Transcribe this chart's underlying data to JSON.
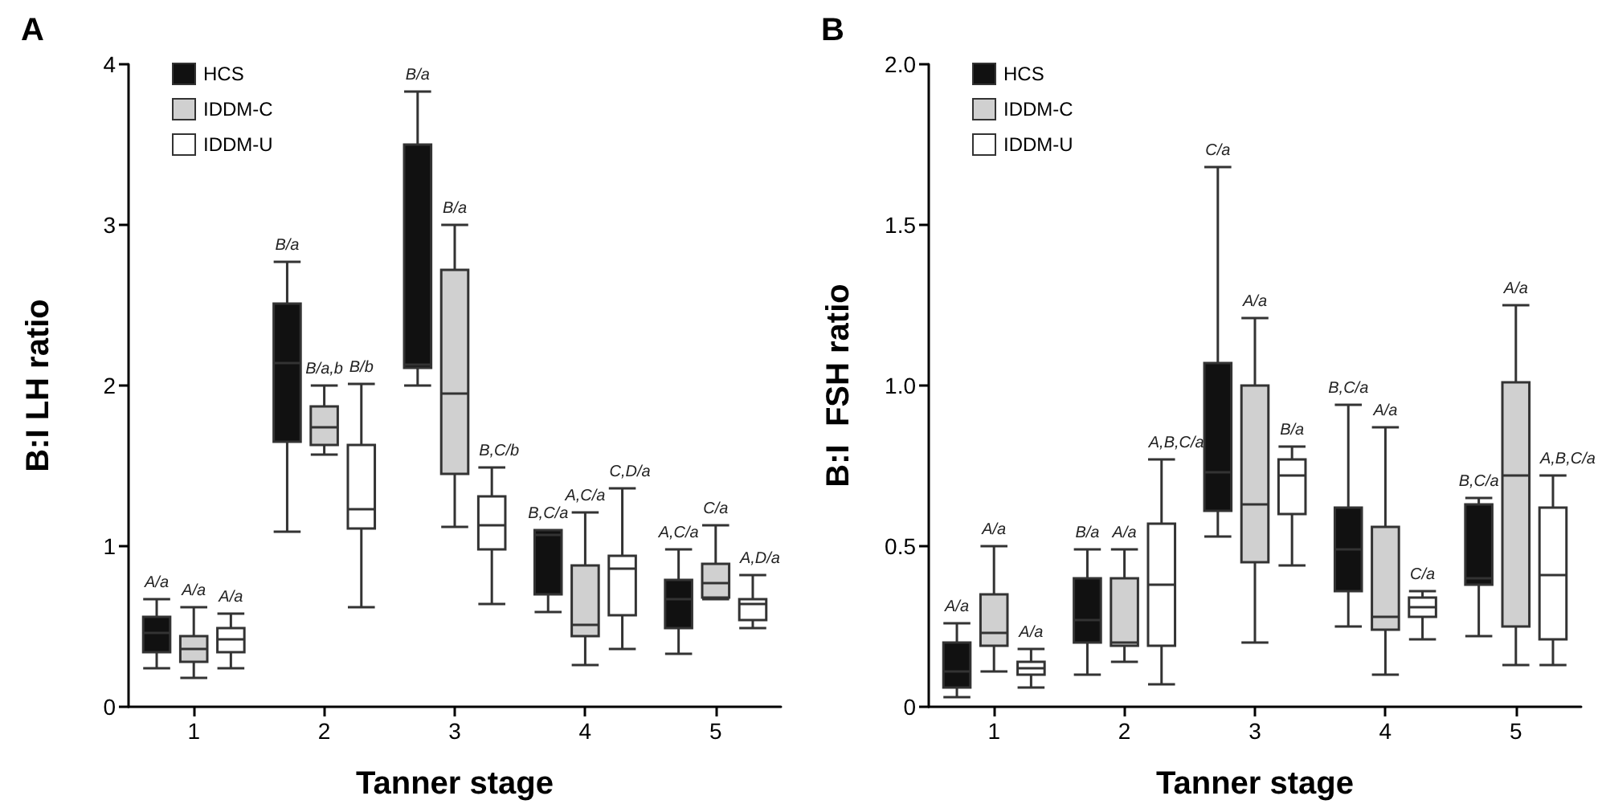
{
  "chart_data": [
    {
      "type": "box",
      "title": "A",
      "xlabel": "Tanner stage",
      "ylabel": "B:I LH ratio",
      "categories": [
        "1",
        "2",
        "3",
        "4",
        "5"
      ],
      "ylim": [
        0,
        4
      ],
      "yticks": [
        0,
        1,
        2,
        3,
        4
      ],
      "grid": false,
      "legend": "top left",
      "series": [
        {
          "name": "HCS",
          "color": "#111111",
          "boxes": [
            {
              "low": 0.24,
              "q1": 0.34,
              "median": 0.46,
              "q3": 0.56,
              "high": 0.67
            },
            {
              "low": 1.09,
              "q1": 1.65,
              "median": 2.14,
              "q3": 2.51,
              "high": 2.77
            },
            {
              "low": 2.0,
              "q1": 2.11,
              "median": 2.13,
              "q3": 3.5,
              "high": 3.83
            },
            {
              "low": 0.59,
              "q1": 0.7,
              "median": 1.07,
              "q3": 1.1,
              "high": 1.1
            },
            {
              "low": 0.33,
              "q1": 0.49,
              "median": 0.67,
              "q3": 0.79,
              "high": 0.98
            }
          ]
        },
        {
          "name": "IDDM-C",
          "color": "#d0d0d0",
          "boxes": [
            {
              "low": 0.18,
              "q1": 0.28,
              "median": 0.36,
              "q3": 0.44,
              "high": 0.62
            },
            {
              "low": 1.57,
              "q1": 1.63,
              "median": 1.74,
              "q3": 1.87,
              "high": 2.0
            },
            {
              "low": 1.12,
              "q1": 1.45,
              "median": 1.95,
              "q3": 2.72,
              "high": 3.0
            },
            {
              "low": 0.26,
              "q1": 0.44,
              "median": 0.51,
              "q3": 0.88,
              "high": 1.21
            },
            {
              "low": 0.67,
              "q1": 0.68,
              "median": 0.77,
              "q3": 0.89,
              "high": 1.13
            }
          ]
        },
        {
          "name": "IDDM-U",
          "color": "#ffffff",
          "boxes": [
            {
              "low": 0.24,
              "q1": 0.34,
              "median": 0.42,
              "q3": 0.49,
              "high": 0.58
            },
            {
              "low": 0.62,
              "q1": 1.11,
              "median": 1.23,
              "q3": 1.63,
              "high": 2.01
            },
            {
              "low": 0.64,
              "q1": 0.98,
              "median": 1.13,
              "q3": 1.31,
              "high": 1.49
            },
            {
              "low": 0.36,
              "q1": 0.57,
              "median": 0.86,
              "q3": 0.94,
              "high": 1.36
            },
            {
              "low": 0.49,
              "q1": 0.54,
              "median": 0.64,
              "q3": 0.67,
              "high": 0.82
            }
          ]
        }
      ],
      "annotations": [
        "A/a",
        "A/a",
        "A/a",
        "B/a",
        "B/a,b",
        "B/b",
        "B/a",
        "B/a",
        "B,C/b",
        "B,C/a",
        "A,C/a",
        "C,D/a",
        "A,C/a",
        "C/a",
        "A,D/a"
      ]
    },
    {
      "type": "box",
      "title": "B",
      "xlabel": "Tanner stage",
      "ylabel": "B:I  FSH ratio",
      "categories": [
        "1",
        "2",
        "3",
        "4",
        "5"
      ],
      "ylim": [
        0,
        2
      ],
      "yticks": [
        0,
        {
          "value": 0.5,
          "label": "0.5"
        },
        {
          "value": 1,
          "label": "1.0"
        },
        {
          "value": 1.5,
          "label": "1.5"
        },
        {
          "value": 2,
          "label": "2.0"
        }
      ],
      "grid": false,
      "legend": "top left",
      "series": [
        {
          "name": "HCS",
          "color": "#111111",
          "boxes": [
            {
              "low": 0.03,
              "q1": 0.06,
              "median": 0.11,
              "q3": 0.2,
              "high": 0.26
            },
            {
              "low": 0.1,
              "q1": 0.2,
              "median": 0.27,
              "q3": 0.4,
              "high": 0.49
            },
            {
              "low": 0.53,
              "q1": 0.61,
              "median": 0.73,
              "q3": 1.07,
              "high": 1.68
            },
            {
              "low": 0.25,
              "q1": 0.36,
              "median": 0.49,
              "q3": 0.62,
              "high": 0.94
            },
            {
              "low": 0.22,
              "q1": 0.38,
              "median": 0.4,
              "q3": 0.63,
              "high": 0.65
            }
          ]
        },
        {
          "name": "IDDM-C",
          "color": "#d0d0d0",
          "boxes": [
            {
              "low": 0.11,
              "q1": 0.19,
              "median": 0.23,
              "q3": 0.35,
              "high": 0.5
            },
            {
              "low": 0.14,
              "q1": 0.19,
              "median": 0.2,
              "q3": 0.4,
              "high": 0.49
            },
            {
              "low": 0.2,
              "q1": 0.45,
              "median": 0.63,
              "q3": 1.0,
              "high": 1.21
            },
            {
              "low": 0.1,
              "q1": 0.24,
              "median": 0.28,
              "q3": 0.56,
              "high": 0.87
            },
            {
              "low": 0.13,
              "q1": 0.25,
              "median": 0.72,
              "q3": 1.01,
              "high": 1.25
            }
          ]
        },
        {
          "name": "IDDM-U",
          "color": "#ffffff",
          "boxes": [
            {
              "low": 0.06,
              "q1": 0.1,
              "median": 0.12,
              "q3": 0.14,
              "high": 0.18
            },
            {
              "low": 0.07,
              "q1": 0.19,
              "median": 0.38,
              "q3": 0.57,
              "high": 0.77
            },
            {
              "low": 0.44,
              "q1": 0.6,
              "median": 0.72,
              "q3": 0.77,
              "high": 0.81
            },
            {
              "low": 0.21,
              "q1": 0.28,
              "median": 0.31,
              "q3": 0.34,
              "high": 0.36
            },
            {
              "low": 0.13,
              "q1": 0.21,
              "median": 0.41,
              "q3": 0.62,
              "high": 0.72
            }
          ]
        }
      ],
      "annotations": [
        "A/a",
        "A/a",
        "A/a",
        "B/a",
        "A/a",
        "A,B,C/a",
        "C/a",
        "A/a",
        "B/a",
        "B,C/a",
        "A/a",
        "C/a",
        "B,C/a",
        "A/a",
        "A,B,C/a"
      ]
    }
  ]
}
